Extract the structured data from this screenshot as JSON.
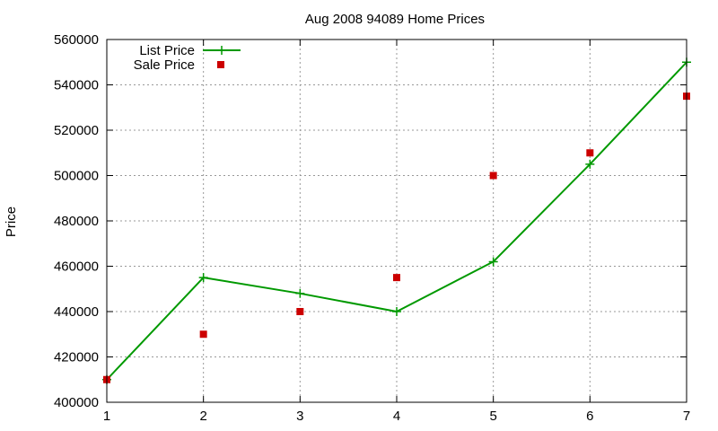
{
  "chart_data": {
    "type": "line",
    "title": "Aug 2008 94089 Home Prices",
    "xlabel": "",
    "ylabel": "Price",
    "xlim": [
      1,
      7
    ],
    "ylim": [
      400000,
      560000
    ],
    "x_ticks": [
      "1",
      "2",
      "3",
      "4",
      "5",
      "6",
      "7"
    ],
    "y_ticks": [
      "400000",
      "420000",
      "440000",
      "460000",
      "480000",
      "500000",
      "520000",
      "540000",
      "560000"
    ],
    "grid": true,
    "legend_position": "top-left",
    "series": [
      {
        "name": "List Price",
        "style": "line-with-plus-markers",
        "color": "#009900",
        "x": [
          1,
          2,
          3,
          4,
          5,
          6,
          7
        ],
        "y": [
          410000,
          455000,
          448000,
          440000,
          462000,
          505000,
          550000
        ]
      },
      {
        "name": "Sale Price",
        "style": "square-points",
        "color": "#cc0000",
        "x": [
          1,
          2,
          3,
          4,
          5,
          6,
          7
        ],
        "y": [
          410000,
          430000,
          440000,
          455000,
          500000,
          510000,
          535000
        ]
      }
    ]
  }
}
